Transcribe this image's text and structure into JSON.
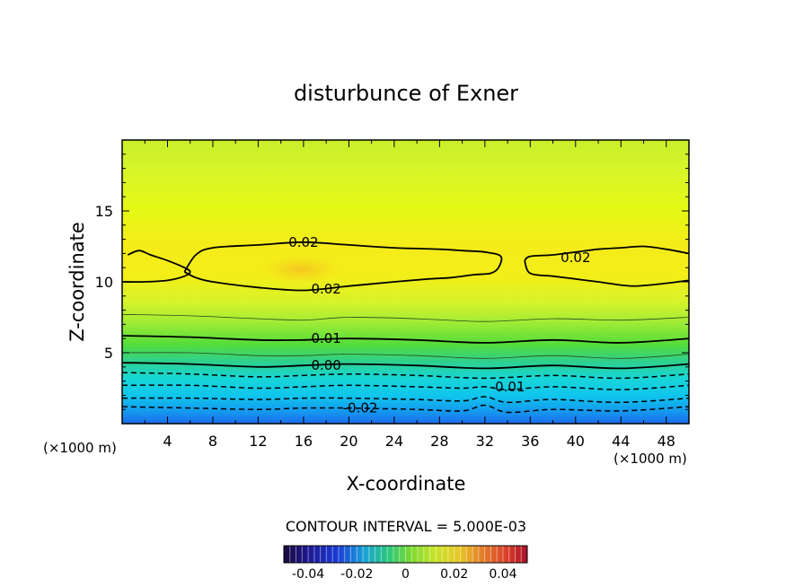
{
  "chart_data": {
    "type": "contour",
    "title": "disturbunce of Exner",
    "xlabel": "X-coordinate",
    "ylabel": "Z-coordinate",
    "x_unit_left": "(×1000 m)",
    "x_unit_right": "(×1000 m)",
    "xlim": [
      0,
      50
    ],
    "ylim": [
      0,
      20
    ],
    "x_ticks": [
      4,
      8,
      12,
      16,
      20,
      24,
      28,
      32,
      36,
      40,
      44,
      48
    ],
    "y_ticks": [
      5,
      10,
      15
    ],
    "contour_interval_text": "CONTOUR INTERVAL = 5.000E-03",
    "contour_labels": [
      "0.02",
      "0.02",
      "0.02",
      "0.01",
      "0.00",
      "-0.01",
      "-0.02"
    ],
    "colorbar": {
      "range": [
        -0.05,
        0.05
      ],
      "tick_labels": [
        "-0.04",
        "-0.02",
        "0",
        "0.02",
        "0.04"
      ],
      "tick_values": [
        -0.04,
        -0.02,
        0,
        0.02,
        0.04
      ]
    },
    "contours": [
      {
        "level": 0.02,
        "style": "solid",
        "label": "0.02",
        "points": [
          [
            0.5,
            11.9
          ],
          [
            1.5,
            12.2
          ],
          [
            2.5,
            11.9
          ],
          [
            4,
            11.5
          ],
          [
            5.5,
            11
          ],
          [
            6,
            10.7
          ],
          [
            5.5,
            10.4
          ],
          [
            4,
            10.1
          ],
          [
            2,
            10
          ],
          [
            0,
            10
          ]
        ]
      },
      {
        "level": 0.02,
        "style": "solid",
        "label": "0.02",
        "points": [
          [
            5.5,
            10.7
          ],
          [
            6.5,
            11.9
          ],
          [
            8,
            12.4
          ],
          [
            12,
            12.6
          ],
          [
            16,
            12.8
          ],
          [
            20,
            12.6
          ],
          [
            24,
            12.4
          ],
          [
            28,
            12.3
          ],
          [
            30,
            12.2
          ],
          [
            32,
            12.1
          ],
          [
            33.4,
            11.8
          ],
          [
            33.2,
            11
          ],
          [
            32.5,
            10.6
          ],
          [
            31,
            10.5
          ],
          [
            29,
            10.3
          ],
          [
            27,
            10.2
          ],
          [
            24,
            10
          ],
          [
            20,
            9.7
          ],
          [
            16,
            9.4
          ],
          [
            12,
            9.6
          ],
          [
            8,
            10
          ],
          [
            6.5,
            10.3
          ],
          [
            5.5,
            10.7
          ]
        ]
      },
      {
        "level": 0.02,
        "style": "solid",
        "label": "0.02",
        "points": [
          [
            35.5,
            11.5
          ],
          [
            36,
            11.8
          ],
          [
            38,
            11.9
          ],
          [
            40,
            12.1
          ],
          [
            42,
            12.3
          ],
          [
            44,
            12.4
          ],
          [
            46,
            12.5
          ],
          [
            48,
            12.3
          ],
          [
            50,
            12
          ]
        ]
      },
      {
        "level": 0.02,
        "style": "solid",
        "label": "",
        "points": [
          [
            35.5,
            11.5
          ],
          [
            36,
            10.6
          ],
          [
            38,
            10.4
          ],
          [
            40,
            10.2
          ],
          [
            42,
            10
          ],
          [
            45,
            9.7
          ],
          [
            48,
            9.9
          ],
          [
            50,
            10.1
          ]
        ]
      },
      {
        "level": 0.015,
        "style": "thin",
        "label": "",
        "points": [
          [
            0,
            7.7
          ],
          [
            6,
            7.6
          ],
          [
            12,
            7.4
          ],
          [
            16,
            7.3
          ],
          [
            20,
            7.5
          ],
          [
            26,
            7.4
          ],
          [
            32,
            7.2
          ],
          [
            38,
            7.4
          ],
          [
            44,
            7.3
          ],
          [
            50,
            7.5
          ]
        ]
      },
      {
        "level": 0.01,
        "style": "solid",
        "label": "0.01",
        "points": [
          [
            0,
            6.2
          ],
          [
            6,
            6.1
          ],
          [
            12,
            5.9
          ],
          [
            16,
            5.9
          ],
          [
            20,
            6.0
          ],
          [
            26,
            5.9
          ],
          [
            32,
            5.7
          ],
          [
            38,
            5.9
          ],
          [
            44,
            5.7
          ],
          [
            50,
            6.0
          ]
        ]
      },
      {
        "level": 0.005,
        "style": "thin",
        "label": "",
        "points": [
          [
            0,
            5.0
          ],
          [
            6,
            5.0
          ],
          [
            12,
            4.8
          ],
          [
            16,
            4.8
          ],
          [
            20,
            4.9
          ],
          [
            26,
            4.8
          ],
          [
            32,
            4.6
          ],
          [
            38,
            4.8
          ],
          [
            44,
            4.6
          ],
          [
            50,
            4.9
          ]
        ]
      },
      {
        "level": 0.0,
        "style": "solid",
        "label": "0.00",
        "points": [
          [
            0,
            4.3
          ],
          [
            6,
            4.2
          ],
          [
            12,
            4.0
          ],
          [
            16,
            4.1
          ],
          [
            20,
            4.2
          ],
          [
            26,
            4.1
          ],
          [
            32,
            3.9
          ],
          [
            38,
            4.1
          ],
          [
            44,
            3.9
          ],
          [
            50,
            4.2
          ]
        ]
      },
      {
        "level": -0.005,
        "style": "dashed",
        "label": "",
        "points": [
          [
            0,
            3.6
          ],
          [
            6,
            3.5
          ],
          [
            12,
            3.3
          ],
          [
            16,
            3.4
          ],
          [
            20,
            3.5
          ],
          [
            26,
            3.4
          ],
          [
            32,
            3.2
          ],
          [
            38,
            3.4
          ],
          [
            44,
            3.2
          ],
          [
            50,
            3.5
          ]
        ]
      },
      {
        "level": -0.01,
        "style": "dashed",
        "label": "-0.01",
        "points": [
          [
            0,
            2.7
          ],
          [
            6,
            2.7
          ],
          [
            12,
            2.5
          ],
          [
            16,
            2.6
          ],
          [
            20,
            2.7
          ],
          [
            26,
            2.6
          ],
          [
            30,
            2.5
          ],
          [
            32,
            2.6
          ],
          [
            34,
            2.4
          ],
          [
            38,
            2.6
          ],
          [
            44,
            2.4
          ],
          [
            50,
            2.7
          ]
        ]
      },
      {
        "level": -0.015,
        "style": "dashed",
        "label": "",
        "points": [
          [
            0,
            1.8
          ],
          [
            6,
            1.8
          ],
          [
            12,
            1.7
          ],
          [
            16,
            1.8
          ],
          [
            20,
            1.8
          ],
          [
            26,
            1.7
          ],
          [
            30,
            1.6
          ],
          [
            32,
            1.9
          ],
          [
            34,
            1.5
          ],
          [
            38,
            1.7
          ],
          [
            44,
            1.5
          ],
          [
            50,
            1.8
          ]
        ]
      },
      {
        "level": -0.02,
        "style": "dashed",
        "label": "-0.02",
        "points": [
          [
            0,
            1.2
          ],
          [
            6,
            1.1
          ],
          [
            12,
            1.0
          ],
          [
            16,
            1.1
          ],
          [
            20,
            1.1
          ],
          [
            26,
            1.0
          ],
          [
            30,
            0.9
          ],
          [
            32,
            1.3
          ],
          [
            34,
            0.8
          ],
          [
            38,
            1.0
          ],
          [
            44,
            0.9
          ],
          [
            50,
            1.2
          ]
        ]
      }
    ],
    "grid": false
  }
}
